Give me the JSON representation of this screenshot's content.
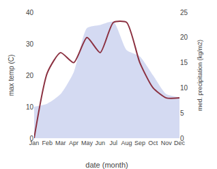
{
  "chart_data": {
    "type": "line",
    "xlabel": "date (month)",
    "ylabel": "max temp (C)",
    "y2label": "med. precipitation (kg/m2)",
    "categories": [
      "Jan",
      "Feb",
      "Mar",
      "Apr",
      "May",
      "Jun",
      "Jul",
      "Aug",
      "Sep",
      "Oct",
      "Nov",
      "Dec"
    ],
    "series": [
      {
        "type": "area",
        "color": "#b0bce8",
        "values": [
          10,
          11,
          14,
          21,
          35,
          36,
          37,
          28,
          26,
          20,
          14,
          13
        ]
      },
      {
        "type": "line",
        "color": "#8b3040",
        "axis": "y2",
        "values": [
          0,
          13,
          17,
          15,
          20,
          17,
          23,
          23,
          15,
          10,
          8,
          8
        ]
      }
    ],
    "ylim": [
      0,
      40
    ],
    "yticks": [
      0,
      10,
      20,
      30,
      40
    ],
    "y2lim": [
      0,
      25
    ],
    "y2ticks": [
      0,
      5,
      10,
      15,
      20,
      25
    ],
    "grid": false
  }
}
